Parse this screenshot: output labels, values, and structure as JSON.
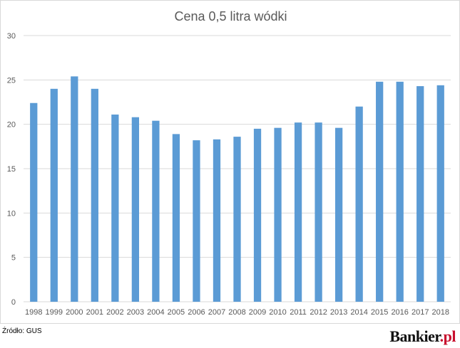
{
  "chart_data": {
    "type": "bar",
    "title": "Cena 0,5 litra wódki",
    "xlabel": "",
    "ylabel": "",
    "ylim": [
      0,
      30
    ],
    "yticks": [
      0,
      5,
      10,
      15,
      20,
      25,
      30
    ],
    "grid": true,
    "categories": [
      "1998",
      "1999",
      "2000",
      "2001",
      "2002",
      "2003",
      "2004",
      "2005",
      "2006",
      "2007",
      "2008",
      "2009",
      "2010",
      "2011",
      "2012",
      "2013",
      "2014",
      "2015",
      "2016",
      "2017",
      "2018"
    ],
    "values": [
      22.4,
      24.0,
      25.4,
      24.0,
      21.1,
      20.8,
      20.4,
      18.9,
      18.2,
      18.3,
      18.6,
      19.5,
      19.6,
      20.2,
      20.2,
      19.6,
      22.0,
      24.8,
      24.8,
      24.3,
      24.4
    ],
    "bar_color": "#5b9bd5"
  },
  "footer": {
    "source": "Źródło: GUS",
    "brand_main": "Bankier",
    "brand_suffix": ".pl"
  }
}
